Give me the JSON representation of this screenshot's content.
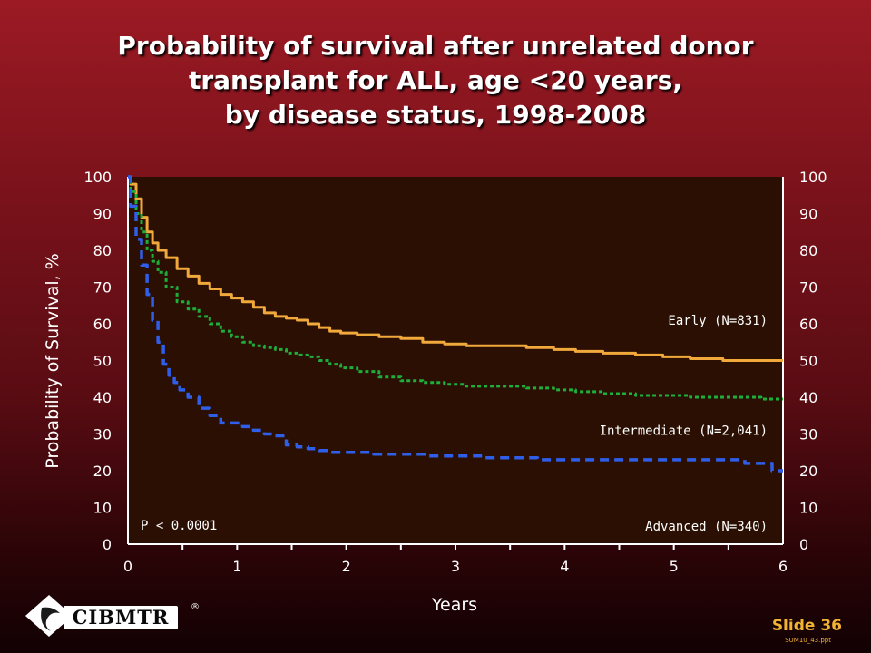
{
  "title_lines": [
    "Probability of survival after unrelated donor",
    "transplant for ALL, age <20 years,",
    "by disease status, 1998-2008"
  ],
  "footer": {
    "logo_text": "CIBMTR",
    "logo_mark": "®",
    "slide_label": "Slide 36",
    "file_name": "SUM10_43.ppt"
  },
  "colors": {
    "plot_background": "#2a0f02",
    "axis": "#ffffff",
    "early": "#f2a93b",
    "intermediate": "#1fae3a",
    "advanced": "#2f5fe8"
  },
  "chart_data": {
    "type": "line",
    "title": "Probability of survival after unrelated donor transplant for ALL, age <20 years, by disease status, 1998-2008",
    "xlabel": "Years",
    "ylabel": "Probability of Survival, %",
    "xlim": [
      0,
      6
    ],
    "ylim": [
      0,
      100
    ],
    "xticks": [
      0,
      1,
      2,
      3,
      4,
      5,
      6
    ],
    "yticks": [
      0,
      10,
      20,
      30,
      40,
      50,
      60,
      70,
      80,
      90,
      100
    ],
    "right_axis_ticks": true,
    "grid": false,
    "annotation": "P < 0.0001",
    "series": [
      {
        "name": "Early (N=831)",
        "style": "solid",
        "x": [
          0,
          0.05,
          0.1,
          0.15,
          0.2,
          0.25,
          0.3,
          0.4,
          0.5,
          0.6,
          0.7,
          0.8,
          0.9,
          1.0,
          1.1,
          1.2,
          1.3,
          1.4,
          1.5,
          1.6,
          1.7,
          1.8,
          1.9,
          2.0,
          2.2,
          2.4,
          2.6,
          2.8,
          3.0,
          3.2,
          3.5,
          3.8,
          4.0,
          4.2,
          4.5,
          4.8,
          5.0,
          5.3,
          5.6,
          6.0
        ],
        "y": [
          100,
          98,
          94,
          89,
          85,
          82,
          80,
          78,
          75,
          73,
          71,
          69.5,
          68,
          67,
          66,
          64.5,
          63,
          62,
          61.5,
          61,
          60,
          59,
          58,
          57.5,
          57,
          56.5,
          56,
          55,
          54.5,
          54,
          54,
          53.5,
          53,
          52.5,
          52,
          51.5,
          51,
          50.5,
          50,
          50
        ]
      },
      {
        "name": "Intermediate (N=2,041)",
        "style": "dotted",
        "x": [
          0,
          0.05,
          0.1,
          0.15,
          0.2,
          0.25,
          0.3,
          0.4,
          0.5,
          0.6,
          0.7,
          0.8,
          0.9,
          1.0,
          1.1,
          1.2,
          1.3,
          1.4,
          1.5,
          1.6,
          1.7,
          1.8,
          1.9,
          2.0,
          2.2,
          2.4,
          2.6,
          2.8,
          3.0,
          3.2,
          3.5,
          3.8,
          4.0,
          4.2,
          4.5,
          4.8,
          5.0,
          5.3,
          5.6,
          6.0
        ],
        "y": [
          100,
          96,
          90,
          85,
          80,
          77,
          74,
          70,
          66,
          64,
          62,
          60,
          58,
          56.5,
          55,
          54,
          53.5,
          53,
          52,
          51.5,
          51,
          50,
          49,
          48,
          47,
          45.5,
          44.5,
          44,
          43.5,
          43,
          43,
          42.5,
          42,
          41.5,
          41,
          40.5,
          40.5,
          40,
          40,
          39.5
        ]
      },
      {
        "name": "Advanced (N=340)",
        "style": "dashed",
        "x": [
          0,
          0.05,
          0.1,
          0.15,
          0.2,
          0.25,
          0.3,
          0.35,
          0.4,
          0.45,
          0.5,
          0.6,
          0.7,
          0.8,
          0.9,
          1.0,
          1.1,
          1.2,
          1.3,
          1.4,
          1.5,
          1.6,
          1.7,
          1.8,
          1.9,
          2.0,
          2.5,
          3.0,
          3.5,
          4.0,
          4.5,
          5.0,
          5.5,
          5.8,
          6.0
        ],
        "y": [
          100,
          92,
          83,
          76,
          68,
          61,
          55,
          49,
          46,
          44,
          42,
          40,
          37,
          35,
          33,
          33,
          32,
          31,
          30,
          29.5,
          27,
          26.5,
          26,
          25.5,
          25,
          25,
          24.5,
          24,
          23.5,
          23,
          23,
          23,
          23,
          22,
          20
        ]
      }
    ]
  }
}
